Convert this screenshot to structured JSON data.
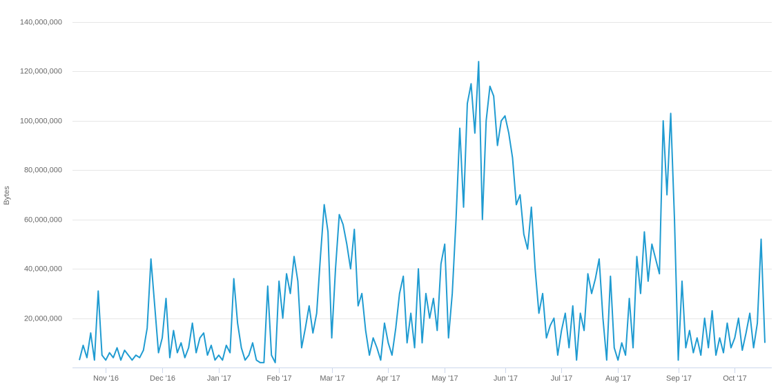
{
  "chart_data": {
    "type": "line",
    "y_label": "Bytes",
    "color": "#1f9bd1",
    "grid": true,
    "ylim": [
      0,
      140000000
    ],
    "yticks": [
      {
        "value": 20000000,
        "label": "20,000,000"
      },
      {
        "value": 40000000,
        "label": "40,000,000"
      },
      {
        "value": 60000000,
        "label": "60,000,000"
      },
      {
        "value": 80000000,
        "label": "80,000,000"
      },
      {
        "value": 100000000,
        "label": "100,000,000"
      },
      {
        "value": 120000000,
        "label": "120,000,000"
      },
      {
        "value": 140000000,
        "label": "140,000,000"
      }
    ],
    "categories": [
      null,
      null,
      null,
      null,
      null,
      null,
      null,
      "Nov '16",
      null,
      null,
      null,
      null,
      null,
      null,
      null,
      null,
      null,
      null,
      null,
      null,
      null,
      null,
      "Dec '16",
      null,
      null,
      null,
      null,
      null,
      null,
      null,
      null,
      null,
      null,
      null,
      null,
      null,
      null,
      "Jan '17",
      null,
      null,
      null,
      null,
      null,
      null,
      null,
      null,
      null,
      null,
      null,
      null,
      null,
      null,
      null,
      "Feb '17",
      null,
      null,
      null,
      null,
      null,
      null,
      null,
      null,
      null,
      null,
      null,
      null,
      null,
      "Mar '17",
      null,
      null,
      null,
      null,
      null,
      null,
      null,
      null,
      null,
      null,
      null,
      null,
      null,
      null,
      "Apr '17",
      null,
      null,
      null,
      null,
      null,
      null,
      null,
      null,
      null,
      null,
      null,
      null,
      null,
      null,
      "May '17",
      null,
      null,
      null,
      null,
      null,
      null,
      null,
      null,
      null,
      null,
      null,
      null,
      null,
      null,
      null,
      "Jun '17",
      null,
      null,
      null,
      null,
      null,
      null,
      null,
      null,
      null,
      null,
      null,
      null,
      null,
      null,
      "Jul '17",
      null,
      null,
      null,
      null,
      null,
      null,
      null,
      null,
      null,
      null,
      null,
      null,
      null,
      null,
      "Aug '17",
      null,
      null,
      null,
      null,
      null,
      null,
      null,
      null,
      null,
      null,
      null,
      null,
      null,
      null,
      null,
      "Sep '17",
      null,
      null,
      null,
      null,
      null,
      null,
      null,
      null,
      null,
      null,
      null,
      null,
      null,
      null,
      "Oct '17",
      null,
      null,
      null,
      null,
      null,
      null,
      null,
      null
    ],
    "values": [
      3000000,
      9000000,
      4000000,
      14000000,
      3000000,
      31000000,
      5000000,
      3000000,
      6000000,
      4000000,
      8000000,
      3000000,
      7000000,
      5000000,
      3000000,
      5000000,
      4000000,
      7000000,
      16000000,
      44000000,
      25000000,
      6000000,
      12000000,
      28000000,
      4000000,
      15000000,
      6000000,
      10000000,
      4000000,
      8000000,
      18000000,
      6000000,
      12000000,
      14000000,
      5000000,
      9000000,
      3000000,
      5000000,
      3000000,
      9000000,
      6000000,
      36000000,
      18000000,
      8000000,
      3000000,
      5000000,
      10000000,
      3000000,
      2000000,
      2000000,
      33000000,
      5000000,
      2000000,
      35000000,
      20000000,
      38000000,
      30000000,
      45000000,
      35000000,
      8000000,
      16000000,
      25000000,
      14000000,
      22000000,
      45000000,
      66000000,
      55000000,
      12000000,
      40000000,
      62000000,
      58000000,
      50000000,
      40000000,
      56000000,
      25000000,
      30000000,
      15000000,
      5000000,
      12000000,
      8000000,
      3000000,
      18000000,
      10000000,
      5000000,
      16000000,
      30000000,
      37000000,
      10000000,
      22000000,
      8000000,
      40000000,
      10000000,
      30000000,
      20000000,
      28000000,
      15000000,
      42000000,
      50000000,
      12000000,
      30000000,
      60000000,
      97000000,
      65000000,
      107000000,
      115000000,
      95000000,
      124000000,
      60000000,
      100000000,
      114000000,
      110000000,
      90000000,
      100000000,
      102000000,
      95000000,
      85000000,
      66000000,
      70000000,
      54000000,
      48000000,
      65000000,
      40000000,
      22000000,
      30000000,
      12000000,
      17000000,
      20000000,
      5000000,
      15000000,
      22000000,
      8000000,
      25000000,
      3000000,
      22000000,
      15000000,
      38000000,
      30000000,
      36000000,
      44000000,
      20000000,
      3000000,
      37000000,
      8000000,
      3000000,
      10000000,
      5000000,
      28000000,
      8000000,
      45000000,
      30000000,
      55000000,
      35000000,
      50000000,
      44000000,
      38000000,
      100000000,
      70000000,
      103000000,
      60000000,
      3000000,
      35000000,
      8000000,
      15000000,
      6000000,
      12000000,
      5000000,
      20000000,
      8000000,
      23000000,
      5000000,
      12000000,
      6000000,
      18000000,
      8000000,
      12000000,
      20000000,
      7000000,
      14000000,
      22000000,
      8000000,
      18000000,
      52000000,
      10000000
    ]
  }
}
